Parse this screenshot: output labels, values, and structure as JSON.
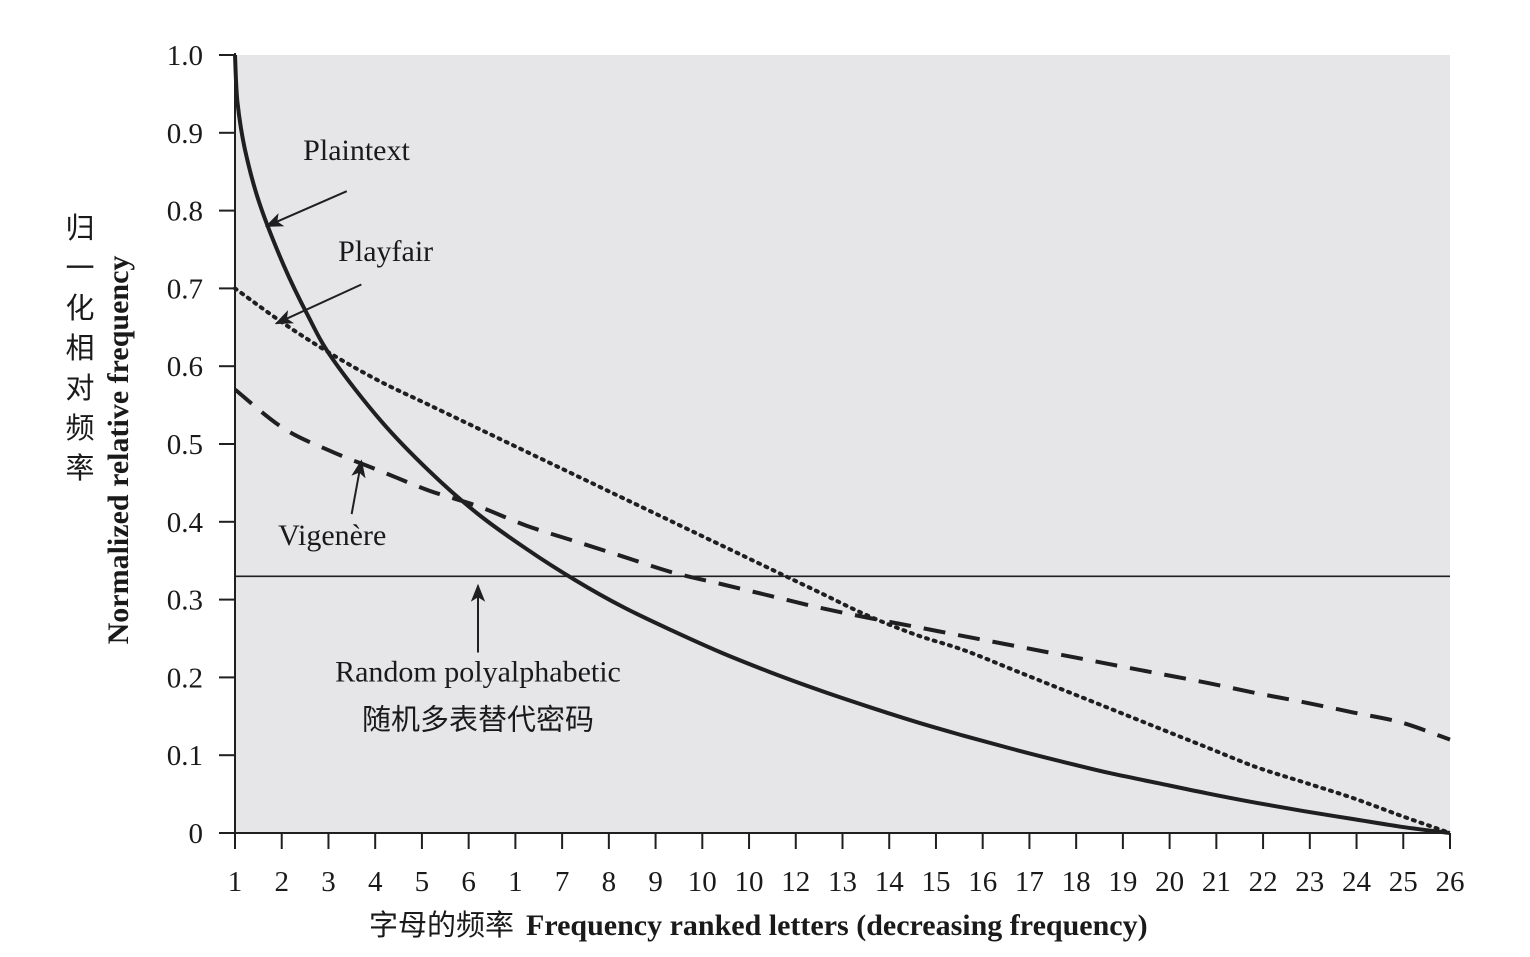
{
  "chart_data": {
    "type": "line",
    "background_color": "#e6e6e8",
    "line_color": "#1f1f1f",
    "grid": false,
    "xlim": [
      1,
      26
    ],
    "ylim": [
      0,
      1.0
    ],
    "x_tick_labels": [
      "1",
      "2",
      "3",
      "4",
      "5",
      "6",
      "1",
      "7",
      "8",
      "9",
      "10",
      "10",
      "12",
      "13",
      "14",
      "15",
      "16",
      "17",
      "18",
      "19",
      "20",
      "21",
      "22",
      "23",
      "24",
      "25",
      "26"
    ],
    "y_tick_labels": [
      "0",
      "0.1",
      "0.2",
      "0.3",
      "0.4",
      "0.5",
      "0.6",
      "0.7",
      "0.8",
      "0.9",
      "1.0"
    ],
    "xlabel": "Frequency ranked letters (decreasing frequency)",
    "xlabel_cn": "字母的频率",
    "ylabel": "Normalized relative frequency",
    "ylabel_cn": "归一化相对频率",
    "series": [
      {
        "name": "Plaintext",
        "style": "solid",
        "x": [
          1,
          1.05,
          1.2,
          1.5,
          2,
          2.5,
          3,
          4,
          5,
          6,
          7,
          8,
          9,
          10,
          11,
          12,
          13,
          14,
          15,
          16,
          17,
          18,
          19,
          20,
          21,
          22,
          23,
          24,
          25,
          26
        ],
        "y": [
          1.0,
          0.94,
          0.88,
          0.81,
          0.73,
          0.665,
          0.61,
          0.53,
          0.465,
          0.41,
          0.365,
          0.325,
          0.29,
          0.26,
          0.232,
          0.207,
          0.184,
          0.163,
          0.143,
          0.125,
          0.108,
          0.092,
          0.077,
          0.064,
          0.051,
          0.039,
          0.028,
          0.018,
          0.008,
          0.0
        ]
      },
      {
        "name": "Playfair",
        "style": "dotted",
        "x": [
          1,
          2,
          3,
          4,
          5,
          6,
          7,
          8,
          9,
          10,
          11,
          12,
          13,
          14,
          15,
          16,
          17,
          18,
          19,
          20,
          21,
          22,
          23,
          24,
          25,
          26
        ],
        "y": [
          0.7,
          0.655,
          0.615,
          0.58,
          0.55,
          0.52,
          0.49,
          0.46,
          0.43,
          0.4,
          0.37,
          0.34,
          0.31,
          0.28,
          0.255,
          0.235,
          0.21,
          0.185,
          0.16,
          0.135,
          0.11,
          0.085,
          0.065,
          0.045,
          0.022,
          0.0
        ]
      },
      {
        "name": "Vigenère",
        "style": "dashed",
        "x": [
          1,
          2,
          3,
          4,
          5,
          6,
          7,
          8,
          9,
          10,
          11,
          12,
          13,
          14,
          15,
          16,
          17,
          18,
          19,
          20,
          21,
          22,
          23,
          24,
          25,
          26
        ],
        "y": [
          0.57,
          0.52,
          0.49,
          0.465,
          0.44,
          0.42,
          0.395,
          0.375,
          0.355,
          0.335,
          0.32,
          0.305,
          0.29,
          0.277,
          0.265,
          0.253,
          0.241,
          0.229,
          0.217,
          0.205,
          0.193,
          0.18,
          0.168,
          0.155,
          0.142,
          0.12
        ]
      },
      {
        "name": "Random polyalphabetic",
        "style": "thin",
        "x": [
          1,
          26
        ],
        "y": [
          0.33,
          0.33
        ]
      }
    ],
    "annotations": [
      {
        "text": "Plaintext",
        "series": 0,
        "text_x": 3.5,
        "text_y": 0.865,
        "arrow_from": [
          3.3,
          0.825
        ],
        "arrow_to": [
          1.65,
          0.78
        ]
      },
      {
        "text": "Playfair",
        "series": 1,
        "text_x": 4.1,
        "text_y": 0.735,
        "arrow_from": [
          3.6,
          0.705
        ],
        "arrow_to": [
          1.85,
          0.655
        ]
      },
      {
        "text": "Vigenère",
        "series": 2,
        "text_x": 3.0,
        "text_y": 0.37,
        "arrow_from": [
          3.4,
          0.41
        ],
        "arrow_to": [
          3.6,
          0.478
        ]
      },
      {
        "text": "Random polyalphabetic",
        "text_cn": "随机多表替代密码",
        "series": 3,
        "text_x": 6.0,
        "text_y": 0.195,
        "arrow_from": [
          6.0,
          0.232
        ],
        "arrow_to": [
          6.0,
          0.318
        ]
      }
    ]
  }
}
